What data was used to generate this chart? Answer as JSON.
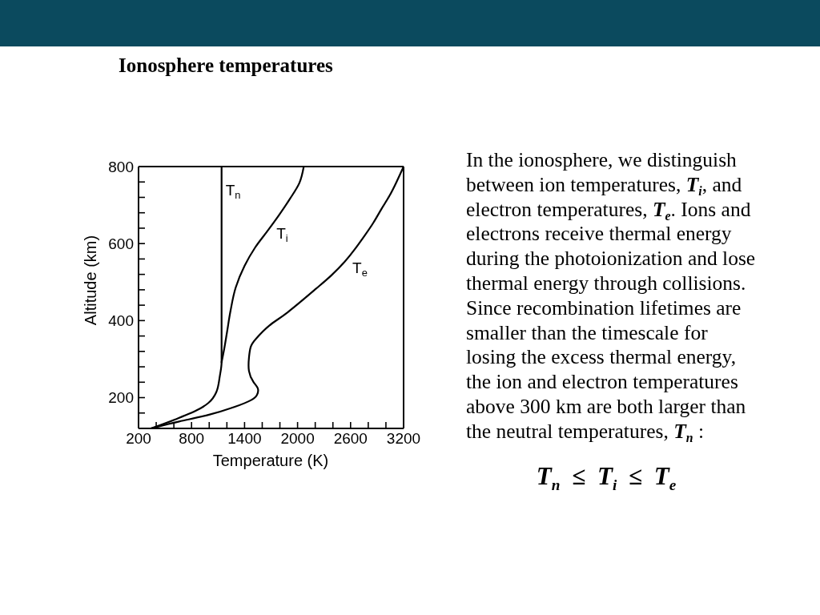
{
  "chart_data": {
    "type": "line",
    "title": "Ionosphere temperatures",
    "xlabel": "Temperature (K)",
    "ylabel": "Altitude (km)",
    "xlim": [
      200,
      3200
    ],
    "xticks": [
      200,
      {
        "value": 400,
        "label": null
      },
      {
        "value": 600,
        "label": null
      },
      800,
      {
        "value": 1000,
        "label": null
      },
      {
        "value": 1200,
        "label": null
      },
      1400,
      {
        "value": 1600,
        "label": null
      },
      {
        "value": 1800,
        "label": null
      },
      2000,
      {
        "value": 2200,
        "label": null
      },
      {
        "value": 2400,
        "label": null
      },
      2600,
      {
        "value": 2800,
        "label": null
      },
      {
        "value": 3000,
        "label": null
      },
      3200
    ],
    "ylim": [
      120,
      800
    ],
    "yticks": [
      {
        "value": 160,
        "label": null
      },
      200,
      {
        "value": 240,
        "label": null
      },
      {
        "value": 280,
        "label": null
      },
      {
        "value": 320,
        "label": null
      },
      {
        "value": 360,
        "label": null
      },
      400,
      {
        "value": 440,
        "label": null
      },
      {
        "value": 480,
        "label": null
      },
      {
        "value": 520,
        "label": null
      },
      {
        "value": 560,
        "label": null
      },
      600,
      {
        "value": 640,
        "label": null
      },
      {
        "value": 680,
        "label": null
      },
      {
        "value": 720,
        "label": null
      },
      {
        "value": 760,
        "label": null
      },
      800
    ],
    "marker": "none",
    "line_style": "solid",
    "series": [
      {
        "name": "T$_{n}$",
        "color": "#000000",
        "x": [
          1140,
          1140,
          1140,
          1120,
          1080,
          990,
          900,
          610,
          340
        ],
        "values": [
          800,
          550,
          292,
          256,
          214,
          186,
          172,
          143,
          120
        ]
      },
      {
        "name": "T$_{i}$",
        "color": "#000000",
        "x": [
          2070,
          2020,
          1910,
          1790,
          1670,
          1520,
          1400,
          1300,
          1240,
          1200,
          1170,
          1140
        ],
        "values": [
          800,
          757,
          715,
          674,
          636,
          590,
          542,
          486,
          424,
          368,
          327,
          292
        ]
      },
      {
        "name": "T$_{e}$",
        "color": "#000000",
        "x": [
          340,
          660,
          990,
          1290,
          1470,
          1540,
          1550,
          1500,
          1450,
          1450,
          1470,
          1530,
          1680,
          1890,
          2210,
          2380,
          2530,
          2650,
          2760,
          2860,
          2950,
          3040,
          3120,
          3200
        ],
        "values": [
          120,
          138,
          155,
          176,
          193,
          207,
          224,
          241,
          269,
          304,
          332,
          353,
          387,
          422,
          483,
          517,
          552,
          586,
          621,
          655,
          690,
          724,
          760,
          800
        ]
      }
    ],
    "annotations": [
      "In the ionosphere, we distinguish between ion temperatures, T$_{i}$, and electron temperatures, T$_{e}$. Ions and electrons receive thermal energy during the photoionization and lose thermal energy through collisions. Since recombination lifetimes are smaller than the timescale for losing the excess thermal energy, the ion and electron temperatures above 300 km are both larger than the neutral temperatures, T$_{n}$ :",
      "T$_{n}$ ≤ T$_{i}$ ≤ T$_{e}$"
    ]
  }
}
